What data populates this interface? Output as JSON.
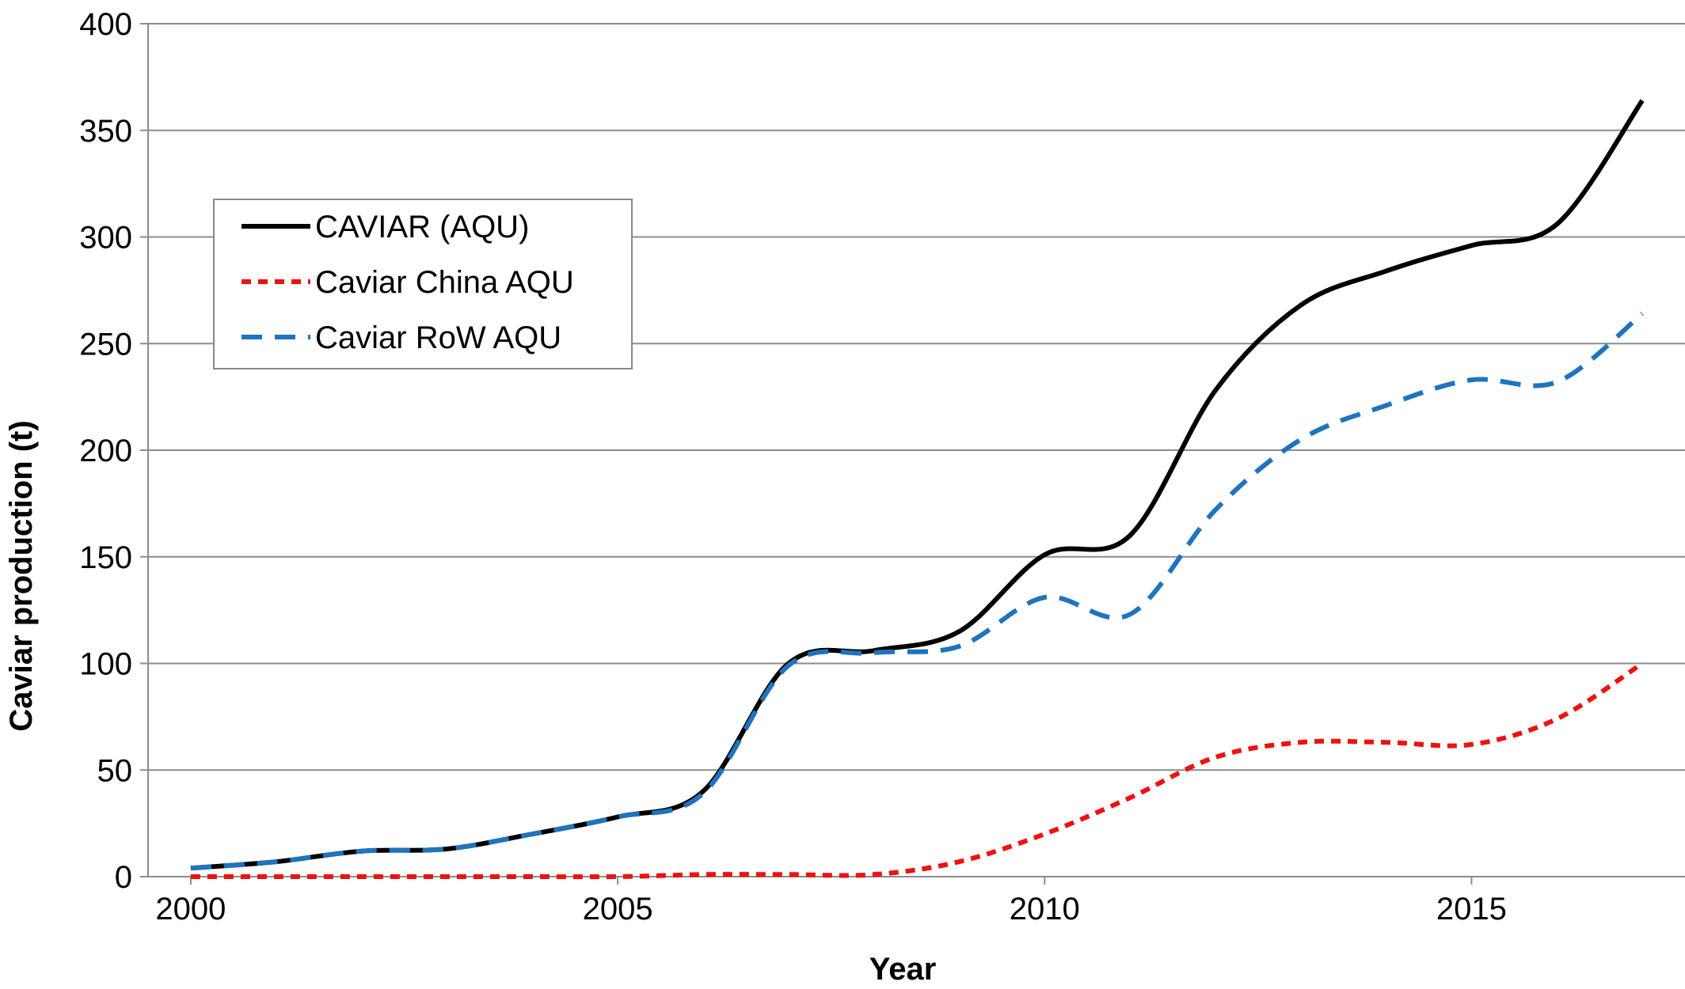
{
  "chart_data": {
    "type": "line",
    "title": "",
    "xlabel": "Year",
    "ylabel": "Caviar production (t)",
    "xlim": [
      1999.5,
      2017.5
    ],
    "ylim": [
      0,
      400
    ],
    "x_ticks": [
      2000,
      2005,
      2010,
      2015
    ],
    "y_ticks": [
      0,
      50,
      100,
      150,
      200,
      250,
      300,
      350,
      400
    ],
    "grid": "horizontal",
    "legend_position": "upper-left",
    "x": [
      2000,
      2001,
      2002,
      2003,
      2004,
      2005,
      2006,
      2007,
      2008,
      2009,
      2010,
      2011,
      2012,
      2013,
      2014,
      2015,
      2016,
      2017
    ],
    "series": [
      {
        "name": "CAVIAR (AQU)",
        "color": "#000000",
        "style": "solid",
        "values": [
          4,
          7,
          12,
          13,
          20,
          28,
          40,
          100,
          106,
          115,
          151,
          160,
          228,
          268,
          284,
          296,
          306,
          364
        ]
      },
      {
        "name": "Caviar China AQU",
        "color": "#ee1111",
        "style": "dotted",
        "values": [
          0,
          0,
          0,
          0,
          0,
          0,
          1,
          1,
          1,
          7,
          20,
          37,
          56,
          63,
          63,
          62,
          74,
          100
        ]
      },
      {
        "name": "Caviar RoW AQU",
        "color": "#1f74bd",
        "style": "dashed",
        "values": [
          4,
          7,
          12,
          13,
          20,
          28,
          39,
          99,
          105,
          108,
          131,
          123,
          172,
          205,
          221,
          233,
          232,
          264
        ]
      }
    ]
  }
}
